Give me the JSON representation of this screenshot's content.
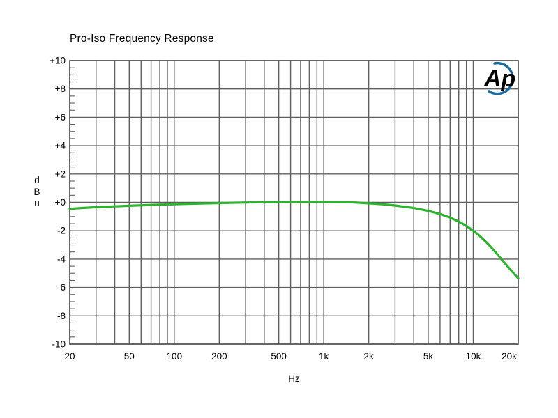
{
  "page": {
    "background": "#ffffff"
  },
  "logo": {
    "text": "Ap",
    "color": "#1b6ba3"
  },
  "chart_data": {
    "type": "line",
    "title": "Pro-Iso Frequency Response",
    "xlabel": "Hz",
    "ylabel": "dBu",
    "x_scale": "log",
    "x_range": [
      20,
      20000
    ],
    "y_range": [
      -10,
      10
    ],
    "y_major_step": 2,
    "y_minor_step": 0.5,
    "grid": true,
    "legend": "none",
    "colors": {
      "grid": "#606060",
      "border": "#555555",
      "text": "#000000",
      "curve": "#2db42d",
      "background": "#ffffff"
    },
    "x_gridlines": [
      20,
      30,
      40,
      50,
      60,
      70,
      80,
      90,
      100,
      200,
      300,
      400,
      500,
      600,
      700,
      800,
      900,
      1000,
      2000,
      3000,
      4000,
      5000,
      6000,
      7000,
      8000,
      9000,
      10000,
      20000
    ],
    "x_ticks": [
      {
        "value": 20,
        "label": "20"
      },
      {
        "value": 50,
        "label": "50"
      },
      {
        "value": 100,
        "label": "100"
      },
      {
        "value": 200,
        "label": "200"
      },
      {
        "value": 500,
        "label": "500"
      },
      {
        "value": 1000,
        "label": "1k"
      },
      {
        "value": 2000,
        "label": "2k"
      },
      {
        "value": 5000,
        "label": "5k"
      },
      {
        "value": 10000,
        "label": "10k"
      },
      {
        "value": 20000,
        "label": "20k"
      }
    ],
    "y_ticks": [
      {
        "value": 10,
        "label": "+10"
      },
      {
        "value": 8,
        "label": "+8"
      },
      {
        "value": 6,
        "label": "+6"
      },
      {
        "value": 4,
        "label": "+4"
      },
      {
        "value": 2,
        "label": "+2"
      },
      {
        "value": 0,
        "label": "+0"
      },
      {
        "value": -2,
        "label": "-2"
      },
      {
        "value": -4,
        "label": "-4"
      },
      {
        "value": -6,
        "label": "-6"
      },
      {
        "value": -8,
        "label": "-8"
      },
      {
        "value": -10,
        "label": "-10"
      }
    ],
    "series": [
      {
        "name": "Pro-Iso frequency response",
        "color": "#2db42d",
        "points": [
          [
            20,
            -0.45
          ],
          [
            25,
            -0.39
          ],
          [
            30,
            -0.34
          ],
          [
            40,
            -0.28
          ],
          [
            50,
            -0.24
          ],
          [
            70,
            -0.18
          ],
          [
            100,
            -0.13
          ],
          [
            150,
            -0.08
          ],
          [
            200,
            -0.05
          ],
          [
            300,
            -0.01
          ],
          [
            400,
            0.01
          ],
          [
            500,
            0.02
          ],
          [
            700,
            0.03
          ],
          [
            1000,
            0.03
          ],
          [
            1500,
            0.01
          ],
          [
            2000,
            -0.07
          ],
          [
            2500,
            -0.14
          ],
          [
            3000,
            -0.22
          ],
          [
            4000,
            -0.4
          ],
          [
            5000,
            -0.6
          ],
          [
            6000,
            -0.82
          ],
          [
            7000,
            -1.07
          ],
          [
            8000,
            -1.35
          ],
          [
            9000,
            -1.66
          ],
          [
            10000,
            -2.0
          ],
          [
            11000,
            -2.35
          ],
          [
            12000,
            -2.72
          ],
          [
            13000,
            -3.1
          ],
          [
            14000,
            -3.48
          ],
          [
            16000,
            -4.2
          ],
          [
            18000,
            -4.82
          ],
          [
            20000,
            -5.35
          ]
        ]
      }
    ]
  }
}
